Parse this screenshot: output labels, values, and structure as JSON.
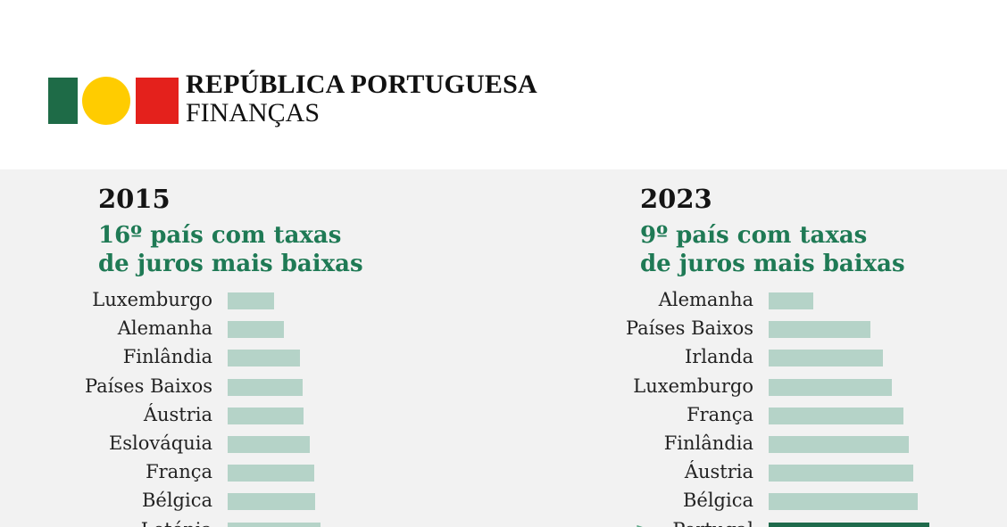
{
  "header": {
    "title": "REPÚBLICA PORTUGUESA",
    "subtitle": "FINANÇAS",
    "flag_colors": [
      "#1e6b47",
      "#ffcc00",
      "#e4211c"
    ]
  },
  "chart_data": [
    {
      "type": "bar",
      "orientation": "horizontal",
      "title": "2015",
      "subtitle": "16º país com taxas de juros mais baixas",
      "subtitle_lines": [
        "16º país com taxas",
        "de juros mais baixas"
      ],
      "categories": [
        "Luxemburgo",
        "Alemanha",
        "Finlândia",
        "Países Baixos",
        "Áustria",
        "Eslováquia",
        "França",
        "Bélgica",
        "Letónia"
      ],
      "values": [
        0.37,
        0.45,
        0.58,
        0.6,
        0.61,
        0.66,
        0.69,
        0.7,
        0.74
      ],
      "highlight": [],
      "colors": {
        "bar": "#b5d3c8",
        "highlight": "#1f6b4c"
      }
    },
    {
      "type": "bar",
      "orientation": "horizontal",
      "title": "2023",
      "subtitle": "9º país com taxas de juros mais baixas",
      "subtitle_lines": [
        "9º país com taxas",
        "de juros mais baixas"
      ],
      "categories": [
        "Alemanha",
        "Países Baixos",
        "Irlanda",
        "Luxemburgo",
        "França",
        "Finlândia",
        "Áustria",
        "Bélgica",
        "Portugal"
      ],
      "values": [
        2.42,
        2.95,
        3.07,
        3.15,
        3.26,
        3.31,
        3.35,
        3.39,
        3.5
      ],
      "highlight": [
        "Portugal"
      ],
      "colors": {
        "bar": "#b5d3c8",
        "highlight": "#1f6b4c"
      }
    }
  ]
}
